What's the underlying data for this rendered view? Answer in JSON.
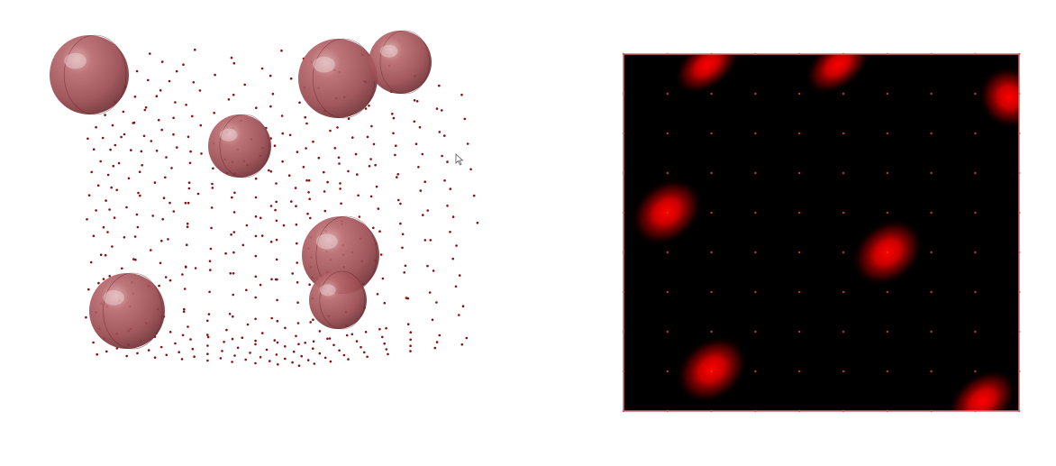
{
  "scene": {
    "background": "#ffffff",
    "point_color": "#8b0e0e",
    "sphere_color": "#a85a5e",
    "sphere_count": 7,
    "grid_size": "10x10x10"
  },
  "heatmap": {
    "background": "#000000",
    "hot_color": "#ff0000",
    "frame_color": "#d46a6a",
    "grid_dots": "10x10"
  },
  "cursor": {
    "icon": "mouse-pointer-icon"
  }
}
